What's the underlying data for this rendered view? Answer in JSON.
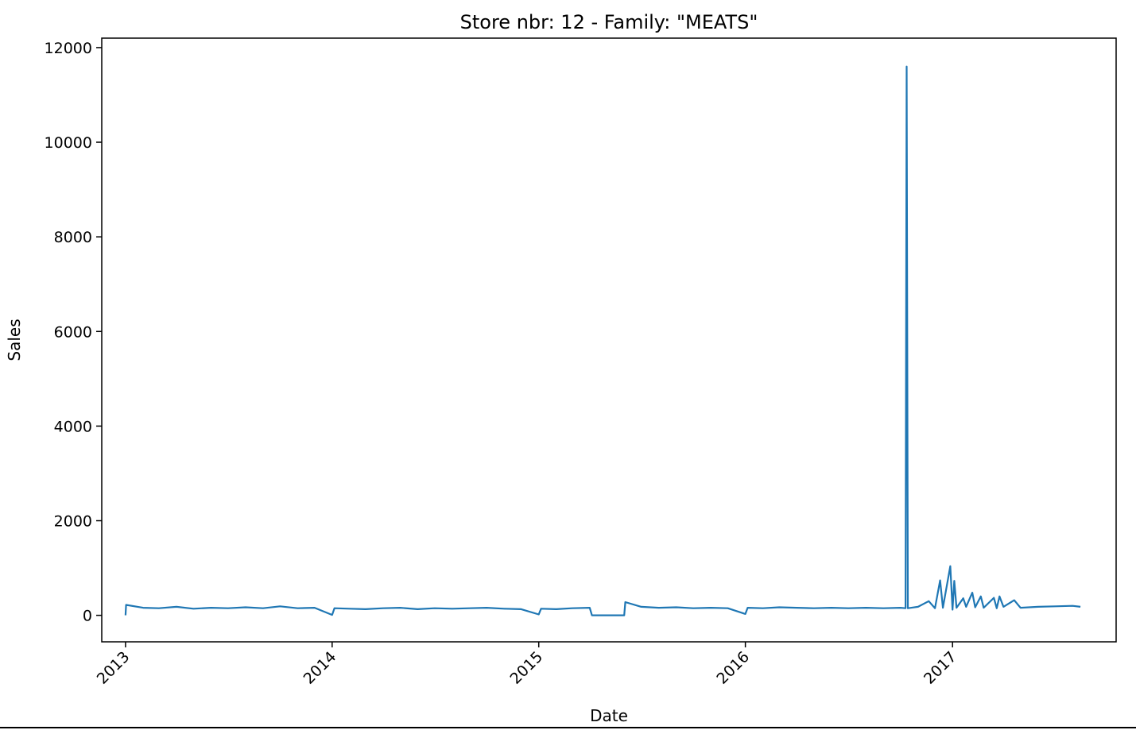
{
  "chart_data": {
    "type": "line",
    "title": "Store nbr: 12 - Family: \"MEATS\"",
    "xlabel": "Date",
    "ylabel": "Sales",
    "xlim": [
      "2012-11-20",
      "2017-10-17"
    ],
    "ylim": [
      -560,
      12200
    ],
    "x_ticks": [
      "2013",
      "2014",
      "2015",
      "2016",
      "2017"
    ],
    "y_ticks": [
      0,
      2000,
      4000,
      6000,
      8000,
      10000,
      12000
    ],
    "y_tick_labels": [
      "0",
      "2000",
      "4000",
      "6000",
      "8000",
      "10000",
      "12000"
    ],
    "grid": false,
    "legend": "none",
    "series": [
      {
        "color": "#1f77b4",
        "points": [
          [
            "2013-01-01",
            0
          ],
          [
            "2013-01-02",
            220
          ],
          [
            "2013-02-01",
            160
          ],
          [
            "2013-03-01",
            150
          ],
          [
            "2013-04-01",
            180
          ],
          [
            "2013-05-01",
            140
          ],
          [
            "2013-06-01",
            160
          ],
          [
            "2013-07-01",
            150
          ],
          [
            "2013-08-01",
            170
          ],
          [
            "2013-09-01",
            150
          ],
          [
            "2013-10-01",
            190
          ],
          [
            "2013-11-01",
            150
          ],
          [
            "2013-12-01",
            160
          ],
          [
            "2014-01-01",
            10
          ],
          [
            "2014-01-05",
            150
          ],
          [
            "2014-02-01",
            140
          ],
          [
            "2014-03-01",
            130
          ],
          [
            "2014-04-01",
            150
          ],
          [
            "2014-05-01",
            160
          ],
          [
            "2014-06-01",
            130
          ],
          [
            "2014-07-01",
            150
          ],
          [
            "2014-08-01",
            140
          ],
          [
            "2014-09-01",
            150
          ],
          [
            "2014-10-01",
            160
          ],
          [
            "2014-11-01",
            140
          ],
          [
            "2014-12-01",
            130
          ],
          [
            "2015-01-01",
            20
          ],
          [
            "2015-01-05",
            140
          ],
          [
            "2015-02-01",
            130
          ],
          [
            "2015-03-01",
            150
          ],
          [
            "2015-04-01",
            160
          ],
          [
            "2015-04-05",
            0
          ],
          [
            "2015-06-01",
            0
          ],
          [
            "2015-06-03",
            280
          ],
          [
            "2015-07-01",
            180
          ],
          [
            "2015-08-01",
            160
          ],
          [
            "2015-09-01",
            170
          ],
          [
            "2015-10-01",
            150
          ],
          [
            "2015-11-01",
            160
          ],
          [
            "2015-12-01",
            150
          ],
          [
            "2016-01-01",
            30
          ],
          [
            "2016-01-05",
            160
          ],
          [
            "2016-02-01",
            150
          ],
          [
            "2016-03-01",
            170
          ],
          [
            "2016-04-01",
            160
          ],
          [
            "2016-05-01",
            150
          ],
          [
            "2016-06-01",
            160
          ],
          [
            "2016-07-01",
            150
          ],
          [
            "2016-08-01",
            160
          ],
          [
            "2016-09-01",
            150
          ],
          [
            "2016-10-01",
            160
          ],
          [
            "2016-10-10",
            150
          ],
          [
            "2016-10-12",
            11600
          ],
          [
            "2016-10-14",
            150
          ],
          [
            "2016-11-01",
            180
          ],
          [
            "2016-11-20",
            300
          ],
          [
            "2016-12-01",
            150
          ],
          [
            "2016-12-10",
            740
          ],
          [
            "2016-12-15",
            160
          ],
          [
            "2016-12-28",
            1040
          ],
          [
            "2017-01-01",
            120
          ],
          [
            "2017-01-04",
            730
          ],
          [
            "2017-01-08",
            160
          ],
          [
            "2017-01-20",
            360
          ],
          [
            "2017-01-25",
            180
          ],
          [
            "2017-02-05",
            480
          ],
          [
            "2017-02-10",
            170
          ],
          [
            "2017-02-20",
            400
          ],
          [
            "2017-02-25",
            160
          ],
          [
            "2017-03-15",
            370
          ],
          [
            "2017-03-20",
            150
          ],
          [
            "2017-03-25",
            400
          ],
          [
            "2017-04-01",
            180
          ],
          [
            "2017-04-20",
            320
          ],
          [
            "2017-05-01",
            160
          ],
          [
            "2017-06-01",
            180
          ],
          [
            "2017-07-01",
            190
          ],
          [
            "2017-08-01",
            200
          ],
          [
            "2017-08-15",
            180
          ]
        ]
      }
    ]
  }
}
